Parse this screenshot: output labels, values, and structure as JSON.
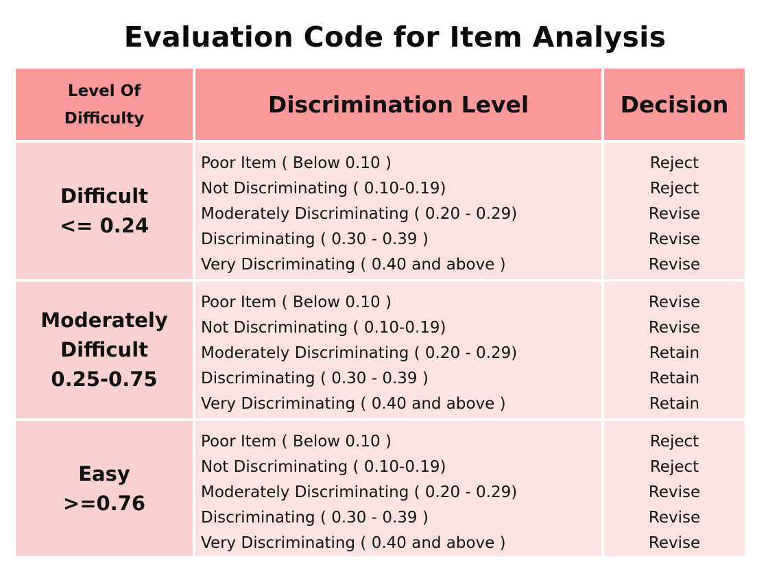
{
  "title": "Evaluation Code for Item Analysis",
  "headers": {
    "level": "Level Of\nDifficulty",
    "discrimination": "Discrimination Level",
    "decision": "Decision"
  },
  "rows": [
    {
      "level": "Difficult\n<= 0.24",
      "items": [
        "Poor Item ( Below 0.10 )",
        "Not Discriminating ( 0.10-0.19)",
        "Moderately Discriminating  ( 0.20 - 0.29)",
        "Discriminating ( 0.30 - 0.39 )",
        "Very Discriminating ( 0.40 and above )"
      ],
      "decisions": [
        "Reject",
        "Reject",
        "Revise",
        "Revise",
        "Revise"
      ]
    },
    {
      "level": "Moderately\nDifficult\n0.25-0.75",
      "items": [
        "Poor Item ( Below 0.10 )",
        "Not Discriminating ( 0.10-0.19)",
        "Moderately Discriminating ( 0.20 - 0.29)",
        "Discriminating ( 0.30 - 0.39 )",
        "Very Discriminating ( 0.40 and above )"
      ],
      "decisions": [
        "Revise",
        "Revise",
        "Retain",
        "Retain",
        "Retain"
      ]
    },
    {
      "level": "Easy\n>=0.76",
      "items": [
        "Poor Item ( Below 0.10 )",
        "Not Discriminating ( 0.10-0.19)",
        "Moderately Discriminating ( 0.20 - 0.29)",
        "Discriminating ( 0.30 - 0.39 )",
        "Very Discriminating ( 0.40 and above )"
      ],
      "decisions": [
        "Reject",
        "Reject",
        "Revise",
        "Revise",
        "Revise"
      ]
    }
  ],
  "colors": {
    "header_bg": "#f9999a",
    "level_bg": "#fbd0d0",
    "body_bg": "#fde2e2"
  }
}
